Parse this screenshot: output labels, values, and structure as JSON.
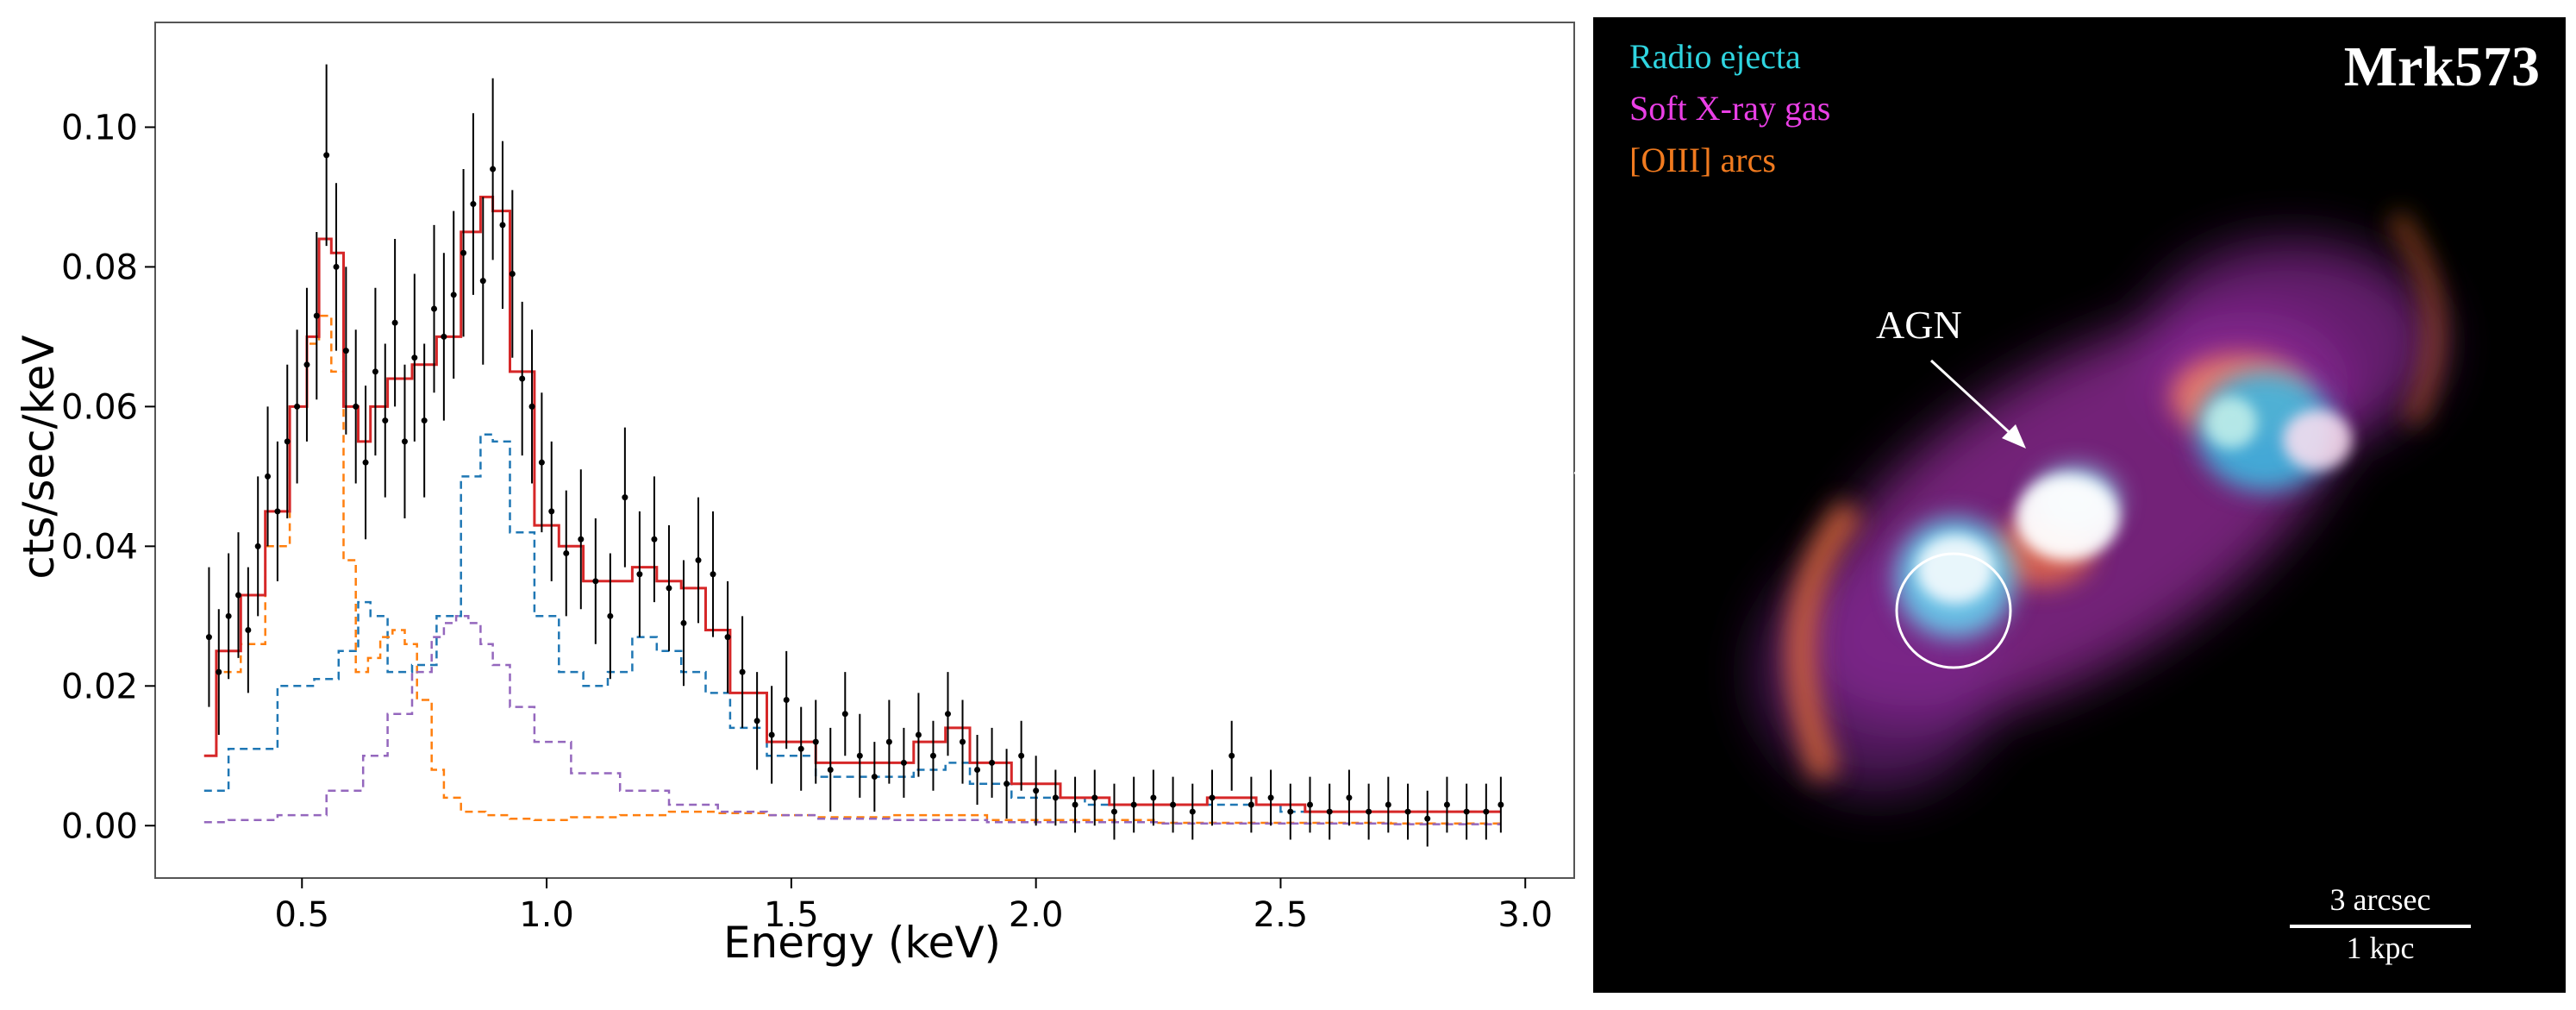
{
  "chart_data": {
    "type": "line",
    "title": "",
    "xlabel": "Energy (keV)",
    "ylabel": "cts/sec/keV",
    "xlim": [
      0.2,
      3.1
    ],
    "ylim": [
      -0.0075,
      0.115
    ],
    "xticks": [
      0.5,
      1.0,
      1.5,
      2.0,
      2.5,
      3.0
    ],
    "xtick_labels": [
      "0.5",
      "1.0",
      "1.5",
      "2.0",
      "2.5",
      "3.0"
    ],
    "yticks": [
      0.0,
      0.02,
      0.04,
      0.06,
      0.08,
      0.1
    ],
    "ytick_labels": [
      "0.00",
      "0.02",
      "0.04",
      "0.06",
      "0.08",
      "0.10"
    ],
    "series": [
      {
        "name": "total model",
        "style": "solid",
        "color": "#d62728",
        "x": [
          0.3,
          0.35,
          0.4,
          0.45,
          0.5,
          0.52,
          0.55,
          0.57,
          0.6,
          0.63,
          0.65,
          0.7,
          0.75,
          0.8,
          0.85,
          0.88,
          0.9,
          0.95,
          1.0,
          1.05,
          1.1,
          1.15,
          1.2,
          1.25,
          1.3,
          1.35,
          1.4,
          1.5,
          1.6,
          1.7,
          1.8,
          1.83,
          1.9,
          2.0,
          2.1,
          2.2,
          2.3,
          2.4,
          2.5,
          2.6,
          2.7,
          2.8,
          2.95
        ],
        "y": [
          0.01,
          0.025,
          0.033,
          0.045,
          0.06,
          0.07,
          0.084,
          0.082,
          0.06,
          0.055,
          0.06,
          0.064,
          0.066,
          0.07,
          0.085,
          0.09,
          0.088,
          0.065,
          0.043,
          0.04,
          0.035,
          0.035,
          0.037,
          0.035,
          0.034,
          0.028,
          0.019,
          0.012,
          0.009,
          0.009,
          0.012,
          0.014,
          0.009,
          0.006,
          0.004,
          0.003,
          0.003,
          0.004,
          0.003,
          0.002,
          0.002,
          0.002,
          0.002
        ]
      },
      {
        "name": "blue component",
        "style": "dashed",
        "color": "#1f77b4",
        "x": [
          0.3,
          0.4,
          0.5,
          0.55,
          0.6,
          0.63,
          0.65,
          0.7,
          0.75,
          0.8,
          0.85,
          0.88,
          0.9,
          0.95,
          1.0,
          1.05,
          1.1,
          1.15,
          1.2,
          1.25,
          1.3,
          1.35,
          1.4,
          1.5,
          1.6,
          1.7,
          1.8,
          1.83,
          1.9,
          2.0,
          2.2,
          2.4,
          2.6,
          2.95
        ],
        "y": [
          0.005,
          0.011,
          0.02,
          0.021,
          0.025,
          0.032,
          0.03,
          0.022,
          0.023,
          0.03,
          0.05,
          0.056,
          0.055,
          0.042,
          0.03,
          0.022,
          0.02,
          0.022,
          0.027,
          0.025,
          0.022,
          0.019,
          0.014,
          0.01,
          0.007,
          0.007,
          0.008,
          0.009,
          0.006,
          0.004,
          0.003,
          0.003,
          0.002,
          0.002
        ]
      },
      {
        "name": "orange component",
        "style": "dashed",
        "color": "#ff7f0e",
        "x": [
          0.3,
          0.35,
          0.4,
          0.45,
          0.5,
          0.52,
          0.55,
          0.57,
          0.6,
          0.62,
          0.65,
          0.67,
          0.7,
          0.72,
          0.75,
          0.78,
          0.8,
          0.85,
          0.9,
          0.95,
          1.0,
          1.1,
          1.2,
          1.3,
          1.4,
          1.5,
          1.6,
          1.8,
          2.0,
          2.5,
          2.95
        ],
        "y": [
          0.01,
          0.022,
          0.026,
          0.04,
          0.06,
          0.069,
          0.073,
          0.065,
          0.038,
          0.022,
          0.024,
          0.027,
          0.028,
          0.026,
          0.018,
          0.008,
          0.004,
          0.002,
          0.0015,
          0.001,
          0.0008,
          0.0012,
          0.0015,
          0.002,
          0.0018,
          0.0015,
          0.0012,
          0.0015,
          0.0008,
          0.0004,
          0.0003
        ]
      },
      {
        "name": "purple component",
        "style": "dashed",
        "color": "#9467bd",
        "x": [
          0.3,
          0.4,
          0.5,
          0.6,
          0.65,
          0.7,
          0.75,
          0.78,
          0.8,
          0.83,
          0.85,
          0.88,
          0.9,
          0.95,
          1.0,
          1.1,
          1.2,
          1.3,
          1.4,
          1.5,
          1.6,
          1.8,
          2.0,
          2.5,
          2.95
        ],
        "y": [
          0.0005,
          0.0008,
          0.0015,
          0.005,
          0.01,
          0.016,
          0.022,
          0.027,
          0.029,
          0.03,
          0.029,
          0.026,
          0.023,
          0.017,
          0.012,
          0.0075,
          0.005,
          0.003,
          0.002,
          0.0015,
          0.001,
          0.0008,
          0.0005,
          0.0003,
          0.0002
        ]
      }
    ],
    "data_points": {
      "name": "observed spectrum",
      "color": "#000000",
      "x": [
        0.31,
        0.33,
        0.35,
        0.37,
        0.39,
        0.41,
        0.43,
        0.45,
        0.47,
        0.49,
        0.51,
        0.53,
        0.55,
        0.57,
        0.59,
        0.61,
        0.63,
        0.65,
        0.67,
        0.69,
        0.71,
        0.73,
        0.75,
        0.77,
        0.79,
        0.81,
        0.83,
        0.85,
        0.87,
        0.89,
        0.91,
        0.93,
        0.95,
        0.97,
        0.99,
        1.01,
        1.04,
        1.07,
        1.1,
        1.13,
        1.16,
        1.19,
        1.22,
        1.25,
        1.28,
        1.31,
        1.34,
        1.37,
        1.4,
        1.43,
        1.46,
        1.49,
        1.52,
        1.55,
        1.58,
        1.61,
        1.64,
        1.67,
        1.7,
        1.73,
        1.76,
        1.79,
        1.82,
        1.85,
        1.88,
        1.91,
        1.94,
        1.97,
        2.0,
        2.04,
        2.08,
        2.12,
        2.16,
        2.2,
        2.24,
        2.28,
        2.32,
        2.36,
        2.4,
        2.44,
        2.48,
        2.52,
        2.56,
        2.6,
        2.64,
        2.68,
        2.72,
        2.76,
        2.8,
        2.84,
        2.88,
        2.92,
        2.95
      ],
      "y": [
        0.027,
        0.022,
        0.03,
        0.033,
        0.028,
        0.04,
        0.05,
        0.045,
        0.055,
        0.06,
        0.066,
        0.073,
        0.096,
        0.08,
        0.068,
        0.06,
        0.052,
        0.065,
        0.058,
        0.072,
        0.055,
        0.067,
        0.058,
        0.074,
        0.07,
        0.076,
        0.082,
        0.089,
        0.078,
        0.094,
        0.086,
        0.079,
        0.064,
        0.06,
        0.052,
        0.045,
        0.039,
        0.041,
        0.035,
        0.03,
        0.047,
        0.036,
        0.041,
        0.034,
        0.029,
        0.038,
        0.036,
        0.027,
        0.022,
        0.015,
        0.013,
        0.018,
        0.011,
        0.012,
        0.008,
        0.016,
        0.01,
        0.007,
        0.012,
        0.009,
        0.013,
        0.01,
        0.016,
        0.012,
        0.008,
        0.009,
        0.006,
        0.01,
        0.005,
        0.004,
        0.003,
        0.004,
        0.002,
        0.003,
        0.004,
        0.003,
        0.002,
        0.004,
        0.01,
        0.003,
        0.004,
        0.002,
        0.003,
        0.002,
        0.004,
        0.002,
        0.003,
        0.002,
        0.001,
        0.003,
        0.002,
        0.002,
        0.003
      ],
      "err": [
        0.01,
        0.009,
        0.009,
        0.009,
        0.009,
        0.01,
        0.01,
        0.01,
        0.011,
        0.011,
        0.011,
        0.012,
        0.013,
        0.012,
        0.012,
        0.011,
        0.011,
        0.012,
        0.011,
        0.012,
        0.011,
        0.012,
        0.011,
        0.012,
        0.012,
        0.012,
        0.012,
        0.013,
        0.012,
        0.013,
        0.012,
        0.012,
        0.011,
        0.011,
        0.01,
        0.01,
        0.009,
        0.01,
        0.009,
        0.009,
        0.01,
        0.009,
        0.009,
        0.009,
        0.009,
        0.009,
        0.009,
        0.008,
        0.008,
        0.007,
        0.007,
        0.007,
        0.006,
        0.006,
        0.006,
        0.006,
        0.006,
        0.005,
        0.006,
        0.005,
        0.006,
        0.005,
        0.006,
        0.006,
        0.005,
        0.005,
        0.005,
        0.005,
        0.005,
        0.004,
        0.004,
        0.004,
        0.004,
        0.004,
        0.004,
        0.004,
        0.004,
        0.004,
        0.005,
        0.004,
        0.004,
        0.004,
        0.004,
        0.004,
        0.004,
        0.004,
        0.004,
        0.004,
        0.004,
        0.004,
        0.004,
        0.004,
        0.004
      ]
    }
  },
  "image_panel": {
    "title": "Mrk573",
    "legend": [
      {
        "label": "Radio ejecta",
        "color": "#2fd5e0"
      },
      {
        "label": "Soft X-ray gas",
        "color": "#ea3fe6"
      },
      {
        "label": "[OIII] arcs",
        "color": "#f07a1f"
      }
    ],
    "agn_label": "AGN",
    "scale_top": "3 arcsec",
    "scale_bottom": "1 kpc"
  }
}
